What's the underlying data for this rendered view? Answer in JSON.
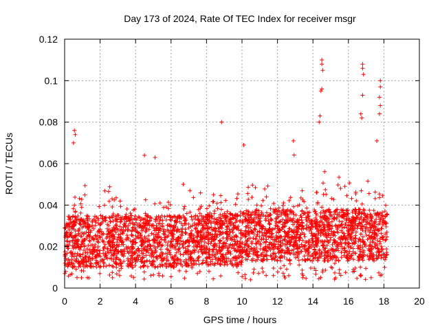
{
  "chart_data": {
    "type": "scatter",
    "title": "Day 173 of 2024, Rate Of TEC Index for receiver msgr",
    "xlabel": "GPS time / hours",
    "ylabel": "ROTI / TECUs",
    "xlim": [
      0,
      20
    ],
    "ylim": [
      0,
      0.12
    ],
    "x_ticks": [
      0,
      2,
      4,
      6,
      8,
      10,
      12,
      14,
      16,
      18,
      20
    ],
    "y_ticks": [
      0,
      0.02,
      0.04,
      0.06,
      0.08,
      0.1,
      0.12
    ],
    "x_tick_labels": [
      "0",
      "2",
      "4",
      "6",
      "8",
      "10",
      "12",
      "14",
      "16",
      "18",
      "20"
    ],
    "y_tick_labels": [
      "0",
      "0.02",
      "0.04",
      "0.06",
      "0.08",
      "0.1",
      "0.12"
    ],
    "grid": true,
    "marker": "+",
    "series": [
      {
        "name": "ROTI",
        "color": "#ff0000",
        "x_range": [
          0.0,
          18.2
        ],
        "typical_band": [
          0.01,
          0.035
        ],
        "notable_points": [
          {
            "x": 0.55,
            "y": 0.076
          },
          {
            "x": 0.6,
            "y": 0.074
          },
          {
            "x": 0.5,
            "y": 0.07
          },
          {
            "x": 4.5,
            "y": 0.064
          },
          {
            "x": 5.1,
            "y": 0.063
          },
          {
            "x": 8.85,
            "y": 0.08
          },
          {
            "x": 10.1,
            "y": 0.069
          },
          {
            "x": 12.9,
            "y": 0.071
          },
          {
            "x": 14.5,
            "y": 0.11
          },
          {
            "x": 14.5,
            "y": 0.108
          },
          {
            "x": 14.55,
            "y": 0.105
          },
          {
            "x": 14.5,
            "y": 0.096
          },
          {
            "x": 14.45,
            "y": 0.095
          },
          {
            "x": 14.4,
            "y": 0.083
          },
          {
            "x": 14.35,
            "y": 0.08
          },
          {
            "x": 16.8,
            "y": 0.108
          },
          {
            "x": 16.8,
            "y": 0.106
          },
          {
            "x": 16.85,
            "y": 0.103
          },
          {
            "x": 16.8,
            "y": 0.093
          },
          {
            "x": 16.7,
            "y": 0.084
          },
          {
            "x": 16.75,
            "y": 0.082
          },
          {
            "x": 17.8,
            "y": 0.1
          },
          {
            "x": 17.8,
            "y": 0.097
          },
          {
            "x": 17.75,
            "y": 0.092
          },
          {
            "x": 17.8,
            "y": 0.088
          },
          {
            "x": 17.75,
            "y": 0.084
          },
          {
            "x": 17.6,
            "y": 0.071
          }
        ]
      }
    ]
  }
}
